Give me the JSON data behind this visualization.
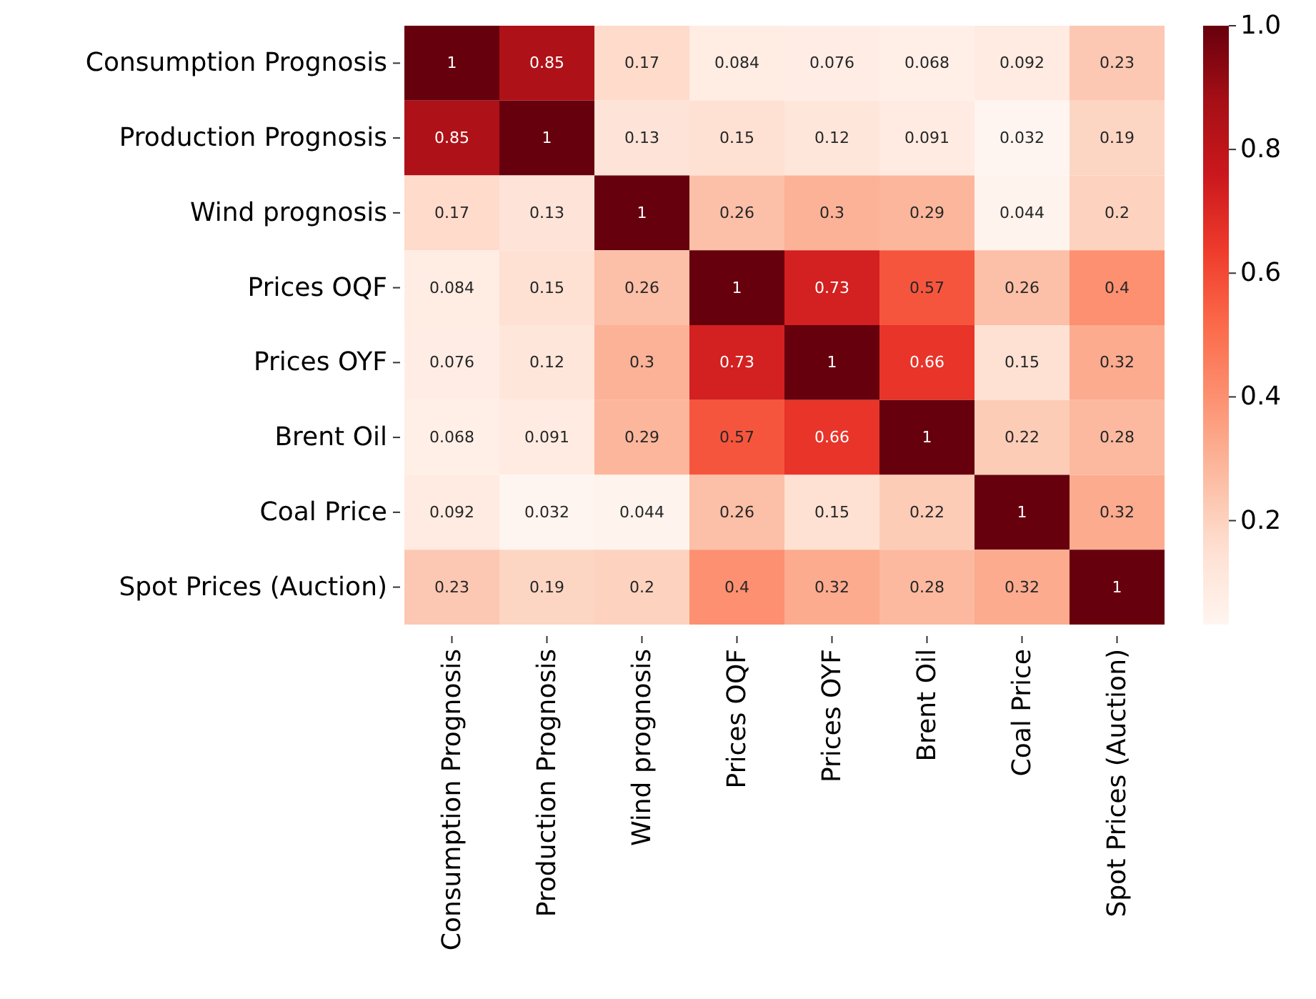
{
  "chart_data": {
    "type": "heatmap",
    "categories": [
      "Consumption Prognosis",
      "Production Prognosis",
      "Wind prognosis",
      "Prices OQF",
      "Prices OYF",
      "Brent Oil",
      "Coal Price",
      "Spot Prices (Auction)"
    ],
    "y_categories": [
      "Consumption Prognosis",
      "Production Prognosis",
      "Wind prognosis",
      "Prices OQF",
      "Prices OYF",
      "Brent Oil",
      "Coal Price",
      "Spot Prices (Auction)"
    ],
    "cells": [
      [
        1,
        0.85,
        0.17,
        0.084,
        0.076,
        0.068,
        0.092,
        0.23
      ],
      [
        0.85,
        1,
        0.13,
        0.15,
        0.12,
        0.091,
        0.032,
        0.19
      ],
      [
        0.17,
        0.13,
        1,
        0.26,
        0.3,
        0.29,
        0.044,
        0.2
      ],
      [
        0.084,
        0.15,
        0.26,
        1,
        0.73,
        0.57,
        0.26,
        0.4
      ],
      [
        0.076,
        0.12,
        0.3,
        0.73,
        1,
        0.66,
        0.15,
        0.32
      ],
      [
        0.068,
        0.091,
        0.29,
        0.57,
        0.66,
        1,
        0.22,
        0.28
      ],
      [
        0.092,
        0.032,
        0.044,
        0.26,
        0.15,
        0.22,
        1,
        0.32
      ],
      [
        0.23,
        0.19,
        0.2,
        0.4,
        0.32,
        0.28,
        0.32,
        1
      ]
    ],
    "clim": [
      0.032,
      1
    ],
    "cticks": [
      0.2,
      0.4,
      0.6,
      0.8,
      {
        "value": 1,
        "label": "1.0"
      }
    ],
    "data_labels": true
  }
}
